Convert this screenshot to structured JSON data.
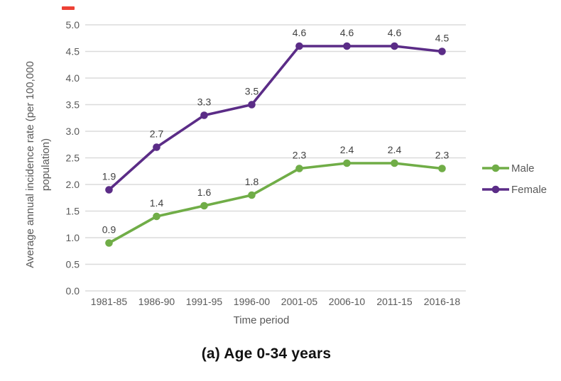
{
  "caption": "(a) Age 0-34 years",
  "red_mark_color": "#ed4135",
  "chart_data": {
    "type": "line",
    "title": "",
    "categories": [
      "1981-85",
      "1986-90",
      "1991-95",
      "1996-00",
      "2001-05",
      "2006-10",
      "2011-15",
      "2016-18"
    ],
    "series": [
      {
        "name": "Male",
        "color": "#70AD47",
        "values": [
          0.9,
          1.4,
          1.6,
          1.8,
          2.3,
          2.4,
          2.4,
          2.3
        ]
      },
      {
        "name": "Female",
        "color": "#5B2C87",
        "values": [
          1.9,
          2.7,
          3.3,
          3.5,
          4.6,
          4.6,
          4.6,
          4.5
        ]
      }
    ],
    "xlabel": "Time period",
    "ylabel_line1": "Average annual incidence rate (per 100,000",
    "ylabel_line2": "population)",
    "ylim": [
      0.0,
      5.0
    ],
    "ytick_step": 0.5,
    "grid": true,
    "data_labels": true,
    "legend_position": "right",
    "colors": {
      "gridline": "#DBDBDB",
      "axis_text": "#595959",
      "data_label": "#404040"
    }
  }
}
